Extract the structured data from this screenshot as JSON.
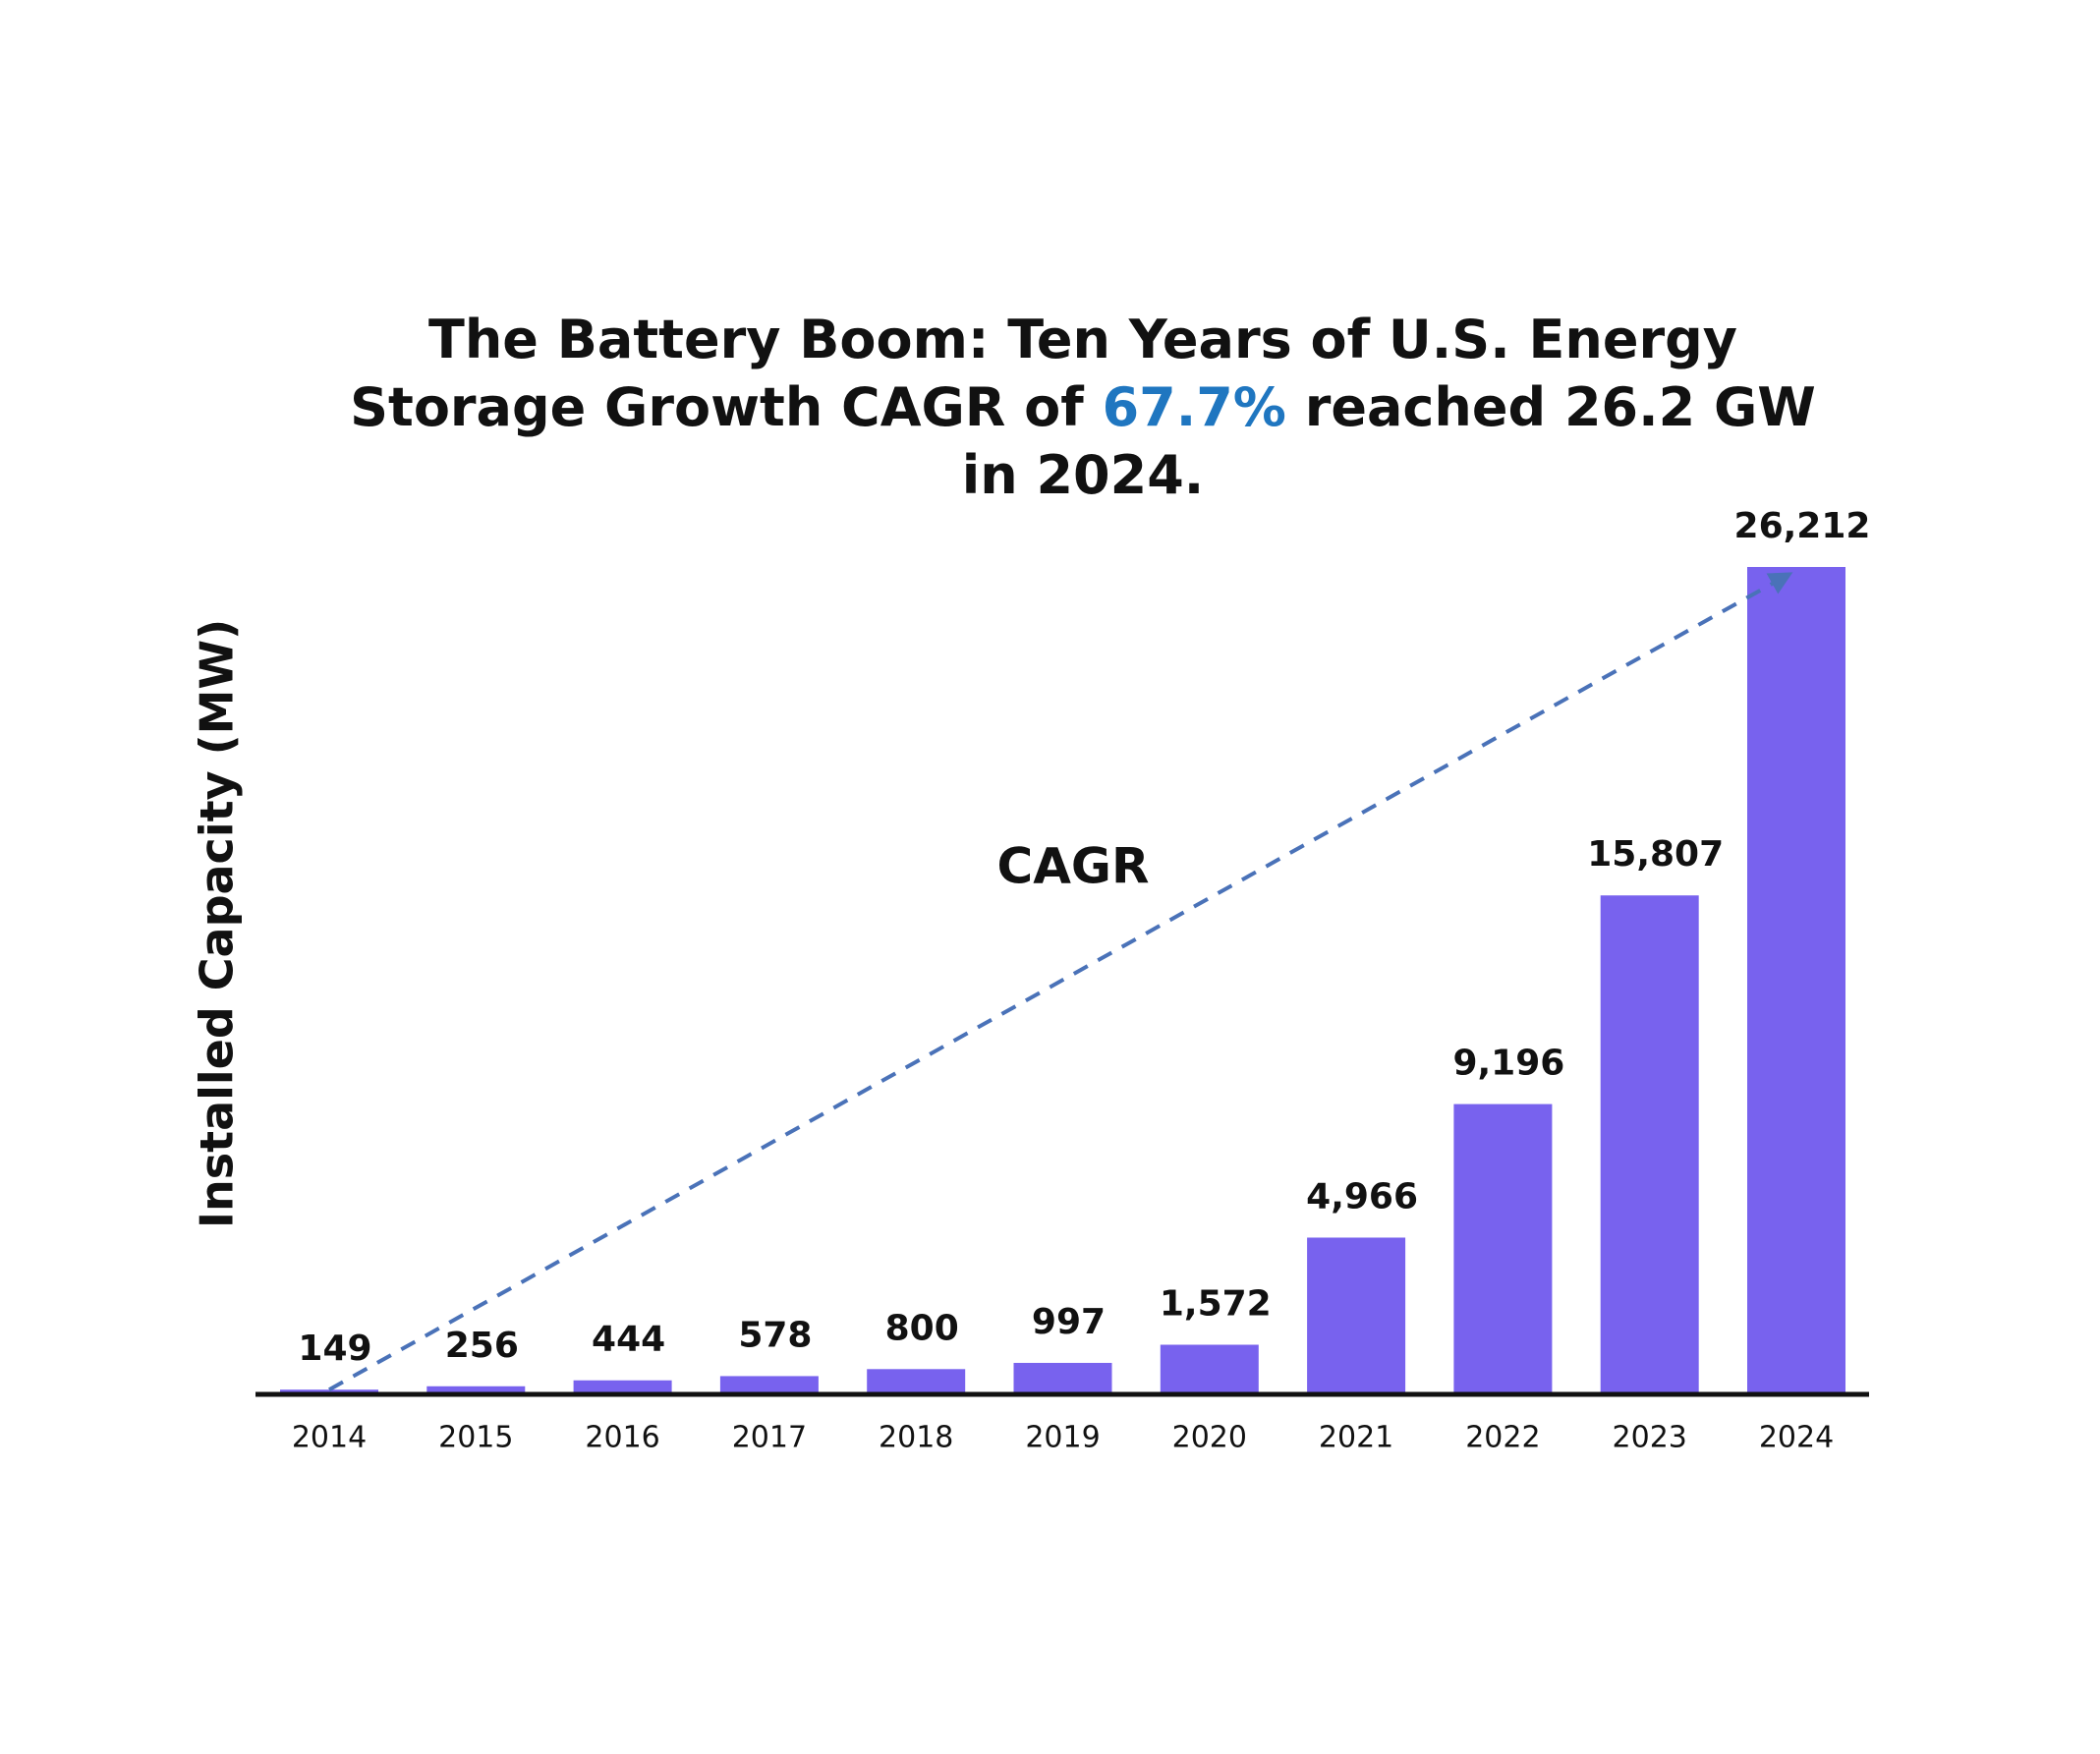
{
  "chart_data": {
    "type": "bar",
    "title": [
      [
        "The Battery Boom: Ten Years of U.S. Energy"
      ],
      [
        "Storage Growth CAGR of ",
        {
          "text": "67.7%",
          "color": "#1f76c0"
        },
        " reached 26.2 GW"
      ],
      [
        "in 2024."
      ]
    ],
    "y_label": "Installed Capacity (MW)",
    "categories": [
      "2014",
      "2015",
      "2016",
      "2017",
      "2018",
      "2019",
      "2020",
      "2021",
      "2022",
      "2023",
      "2024"
    ],
    "values": [
      149,
      256,
      444,
      578,
      800,
      997,
      1572,
      4966,
      9196,
      15807,
      26212
    ],
    "value_labels": [
      "149",
      "256",
      "444",
      "578",
      "800",
      "997",
      "1,572",
      "4,966",
      "9,196",
      "15,807",
      "26,212"
    ],
    "color": "#7862ee",
    "annotation": {
      "text": "CAGR",
      "color": "#1f76c0",
      "line_color": "#4a72b8"
    }
  }
}
